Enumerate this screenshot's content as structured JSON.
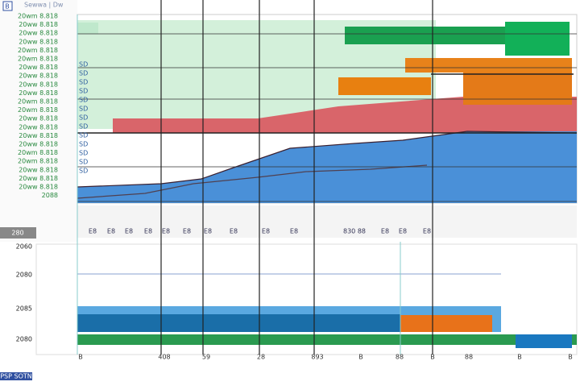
{
  "header": {
    "icon_label": "B",
    "menu_text": "Sewwa | Dw"
  },
  "row_labels": [
    "20wm 8.818",
    "20ww 8.818",
    "20ww 8.818",
    "20ww 8.818",
    "20wm 8.818",
    "20wm 8.818",
    "20ww 8.818",
    "20ww 8.818",
    "20ww 8.818",
    "20ww 8.818",
    "20wm 8.818",
    "20wm 8.818",
    "20ww 8.818",
    "20ww 8.818",
    "20ww 8.818",
    "20ww 8.818",
    "20wm 8.818",
    "20wm 8.818",
    "20ww 8.818",
    "20ww 8.818",
    "20ww 8.818",
    "2088"
  ],
  "side_labels": [
    "SD",
    "SD",
    "SD",
    "SD",
    "SD",
    "SD",
    "SD",
    "SD",
    "SD",
    "SD",
    "SD",
    "SD",
    "SD"
  ],
  "axis_strip_labels": [
    "E8",
    "E8",
    "E8",
    "E8",
    "E8",
    "E8",
    "E8",
    "E8",
    "E8",
    "E8",
    "830 88",
    "E8",
    "E8",
    "E8"
  ],
  "lower_header": "280",
  "lower_y_labels": [
    "2060",
    "2080",
    "2085",
    "2080"
  ],
  "lower_x_labels": [
    "B",
    "408",
    "59",
    "28",
    "893",
    "B",
    "88",
    "B",
    "88",
    "B",
    "B"
  ],
  "status": "PSP SOTN"
}
